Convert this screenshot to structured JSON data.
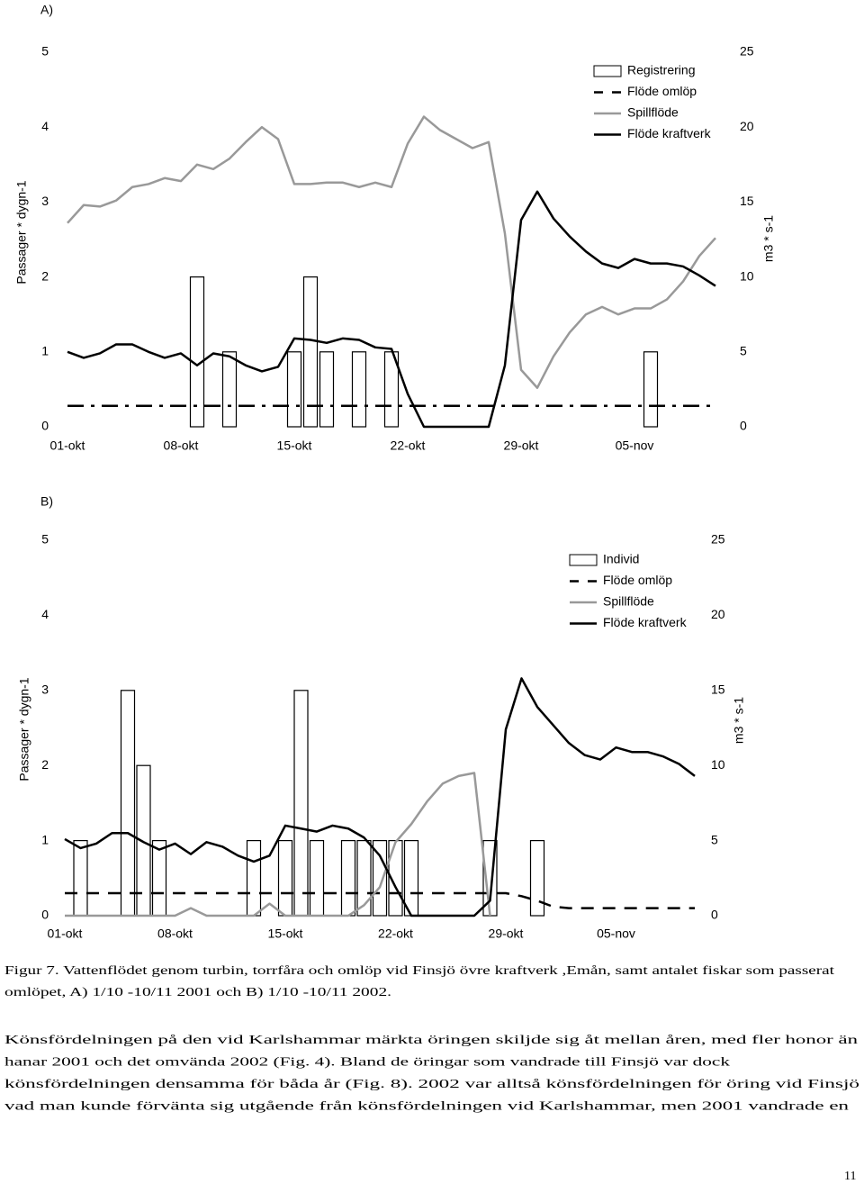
{
  "chart_data": [
    {
      "type": "bar_line",
      "title": "A)",
      "y_label": "Passager * dygn-1",
      "y2_label": "m3 * s-1",
      "x": [
        "01-okt",
        null,
        null,
        null,
        null,
        null,
        null,
        "08-okt",
        null,
        null,
        null,
        null,
        null,
        null,
        "15-okt",
        null,
        null,
        null,
        null,
        null,
        null,
        "22-okt",
        null,
        null,
        null,
        null,
        null,
        null,
        "29-okt",
        null,
        null,
        null,
        null,
        null,
        null,
        "05-nov",
        null,
        null,
        null,
        null,
        null
      ],
      "ylim": [
        0,
        5
      ],
      "yticks": [
        0,
        1,
        2,
        3,
        4,
        5
      ],
      "y2lim": [
        0,
        25
      ],
      "y2ticks": [
        0,
        5,
        10,
        15,
        20,
        25
      ],
      "grid": false,
      "legend": "upper right",
      "series": [
        {
          "name": "Registrering",
          "kind": "bar",
          "color": "#000000",
          "values": [
            0,
            0,
            0,
            0,
            0,
            0,
            0,
            0,
            2,
            0,
            1,
            0,
            0,
            0,
            1,
            2,
            1,
            0,
            1,
            0,
            1,
            0,
            0,
            0,
            0,
            0,
            0,
            0,
            0,
            0,
            0,
            0,
            0,
            0,
            0,
            0,
            1,
            0,
            0,
            0,
            0
          ]
        },
        {
          "name": "Flöde omlöp",
          "kind": "line",
          "dash": "dashdot",
          "color": "#000000",
          "axis": "y2",
          "values": [
            1.4,
            1.4,
            1.4,
            1.4,
            1.4,
            1.4,
            1.4,
            1.4,
            1.4,
            1.4,
            1.4,
            1.4,
            1.4,
            1.4,
            1.4,
            1.4,
            1.4,
            1.4,
            1.4,
            1.4,
            1.4,
            1.4,
            1.4,
            1.4,
            1.4,
            1.4,
            1.4,
            1.4,
            1.4,
            1.4,
            1.4,
            1.4,
            1.4,
            1.4,
            1.4,
            1.4,
            1.4,
            1.4,
            1.4,
            1.4,
            1.4
          ]
        },
        {
          "name": "Spillflöde",
          "kind": "line",
          "color": "#999999",
          "axis": "y2",
          "values": [
            13.6,
            14.8,
            14.7,
            15.1,
            16.0,
            16.2,
            16.6,
            16.4,
            17.5,
            17.2,
            17.9,
            19.0,
            20.0,
            19.2,
            16.2,
            16.2,
            16.3,
            16.3,
            16.0,
            16.3,
            16.0,
            18.9,
            20.7,
            19.8,
            19.2,
            18.6,
            19.0,
            12.9,
            3.8,
            2.6,
            4.7,
            6.3,
            7.5,
            8.0,
            7.5,
            7.9,
            7.9,
            8.5,
            9.7,
            11.4,
            12.6
          ]
        },
        {
          "name": "Flöde kraftverk",
          "kind": "line",
          "color": "#000000",
          "axis": "y2",
          "values": [
            5.0,
            4.6,
            4.9,
            5.5,
            5.5,
            5.0,
            4.6,
            4.9,
            4.1,
            4.9,
            4.7,
            4.1,
            3.7,
            4.0,
            5.9,
            5.8,
            5.6,
            5.9,
            5.8,
            5.3,
            5.2,
            2.2,
            0,
            0,
            0,
            0,
            0,
            4.1,
            13.8,
            15.7,
            13.9,
            12.7,
            11.7,
            10.9,
            10.6,
            11.2,
            10.9,
            10.9,
            10.7,
            10.1,
            9.4
          ]
        }
      ]
    },
    {
      "type": "bar_line",
      "title": "B)",
      "y_label": "Passager * dygn-1",
      "y2_label": "m3 * s-1",
      "x": [
        "01-okt",
        null,
        null,
        null,
        null,
        null,
        null,
        "08-okt",
        null,
        null,
        null,
        null,
        null,
        null,
        "15-okt",
        null,
        null,
        null,
        null,
        null,
        null,
        "22-okt",
        null,
        null,
        null,
        null,
        null,
        null,
        "29-okt",
        null,
        null,
        null,
        null,
        null,
        null,
        "05-nov",
        null,
        null,
        null,
        null,
        null
      ],
      "ylim": [
        0,
        5
      ],
      "yticks": [
        0,
        1,
        2,
        3,
        4,
        5
      ],
      "y2lim": [
        0,
        25
      ],
      "y2ticks": [
        0,
        5,
        10,
        15,
        20,
        25
      ],
      "grid": false,
      "legend": "upper right",
      "series": [
        {
          "name": "Individ",
          "kind": "bar",
          "color": "#000000",
          "values": [
            0,
            1,
            0,
            0,
            3,
            2,
            1,
            0,
            0,
            0,
            0,
            0,
            1,
            0,
            1,
            3,
            1,
            0,
            1,
            1,
            1,
            1,
            1,
            0,
            0,
            0,
            0,
            1,
            0,
            0,
            1,
            0,
            0,
            0,
            0,
            0,
            0,
            0,
            0,
            0,
            0
          ]
        },
        {
          "name": "Flöde omlöp",
          "kind": "line",
          "dash": "dashed",
          "color": "#000000",
          "axis": "y2",
          "values": [
            1.5,
            1.5,
            1.5,
            1.5,
            1.5,
            1.5,
            1.5,
            1.5,
            1.5,
            1.5,
            1.5,
            1.5,
            1.5,
            1.5,
            1.5,
            1.5,
            1.5,
            1.5,
            1.5,
            1.5,
            1.5,
            1.5,
            1.5,
            1.5,
            1.5,
            1.5,
            1.5,
            1.5,
            1.5,
            1.3,
            1.0,
            0.6,
            0.5,
            0.5,
            0.5,
            0.5,
            0.5,
            0.5,
            0.5,
            0.5,
            0.5
          ]
        },
        {
          "name": "Spillflöde",
          "kind": "line",
          "color": "#999999",
          "axis": "y2",
          "values": [
            0,
            0,
            0,
            0,
            0,
            0,
            0,
            0,
            0.5,
            0,
            0,
            0,
            0,
            0.8,
            0,
            0,
            0,
            0,
            0,
            0.7,
            1.9,
            4.9,
            6.1,
            7.6,
            8.8,
            9.3,
            9.5,
            0,
            null,
            null,
            null,
            null,
            null,
            null,
            null,
            null,
            null,
            null,
            null,
            null,
            null
          ]
        },
        {
          "name": "Flöde kraftverk",
          "kind": "line",
          "color": "#000000",
          "axis": "y2",
          "values": [
            5.1,
            4.5,
            4.8,
            5.5,
            5.5,
            4.9,
            4.4,
            4.8,
            4.1,
            4.9,
            4.6,
            4.0,
            3.6,
            4.0,
            6.0,
            5.8,
            5.6,
            6.0,
            5.8,
            5.2,
            4.0,
            1.9,
            0,
            0,
            0,
            0,
            0,
            1.0,
            12.4,
            15.8,
            13.9,
            12.7,
            11.5,
            10.7,
            10.4,
            11.2,
            10.9,
            10.9,
            10.6,
            10.1,
            9.3
          ]
        }
      ]
    }
  ],
  "caption": [
    "Figur 7. Vattenflödet genom turbin, torrfåra och omlöp vid Finsjö övre kraftverk ,Emån, samt antalet fiskar som passerat",
    "omlöpet, A) 1/10 -10/11 2001 och B) 1/10 -10/11 2002."
  ],
  "body": [
    "Könsfördelningen på den vid Karlshammar märkta öringen skiljde sig åt mellan åren, med fler honor än",
    "hanar 2001 och det omvända 2002 (Fig. 4). Bland de öringar som vandrade till Finsjö var dock",
    "könsfördelningen densamma för båda år (Fig. 8). 2002 var alltså könsfördelningen för öring vid Finsjö",
    "vad man kunde förvänta sig utgående från könsfördelningen vid Karlshammar, men 2001 vandrade en"
  ],
  "page_number": "11"
}
